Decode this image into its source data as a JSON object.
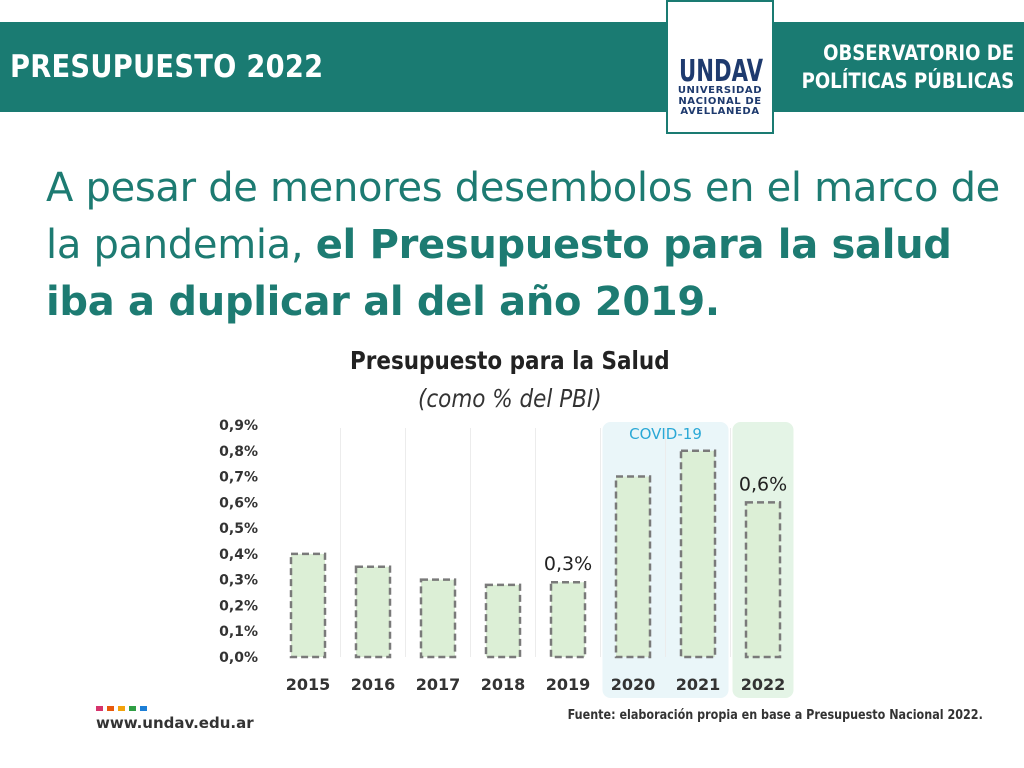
{
  "header": {
    "title": "PRESUPUESTO 2022",
    "org_line1": "OBSERVATORIO DE",
    "org_line2": "POLÍTICAS PÚBLICAS",
    "logo_text": "UNDAV",
    "logo_line1": "UNIVERSIDAD",
    "logo_line2": "NACIONAL DE",
    "logo_line3": "AVELLANEDA",
    "color": "#1a7b72"
  },
  "headline": {
    "part1": "A pesar de menores desembolos en el marco de la pandemia, ",
    "part2": "el Presupuesto para la salud iba a duplicar al del año 2019."
  },
  "chart_data": {
    "type": "bar",
    "title": "Presupuesto para la Salud",
    "subtitle": "(como % del PBI)",
    "categories": [
      "2015",
      "2016",
      "2017",
      "2018",
      "2019",
      "2020",
      "2021",
      "2022"
    ],
    "values": [
      0.4,
      0.35,
      0.3,
      0.28,
      0.29,
      0.7,
      0.8,
      0.6
    ],
    "ylim": [
      0,
      0.9
    ],
    "yticks": [
      "0,0%",
      "0,1%",
      "0,2%",
      "0,3%",
      "0,4%",
      "0,5%",
      "0,6%",
      "0,7%",
      "0,8%",
      "0,9%"
    ],
    "data_labels": [
      {
        "category": "2019",
        "text": "0,3%"
      },
      {
        "category": "2022",
        "text": "0,6%"
      }
    ],
    "highlight": {
      "label": "COVID-19",
      "categories": [
        "2020",
        "2021"
      ]
    },
    "bar_color": "#dcefd6",
    "bar_border": "#7a7a7a",
    "covid_bg": "#eaf6f9",
    "highlight_2022_bg": "#e4f4e6"
  },
  "footer": {
    "website": "www.undav.edu.ar",
    "source": "Fuente: elaboración propia en base a Presupuesto Nacional 2022.",
    "dot_colors": [
      "#d6336c",
      "#e8590c",
      "#f2a20b",
      "#2f9e44",
      "#1c7ed6"
    ]
  }
}
